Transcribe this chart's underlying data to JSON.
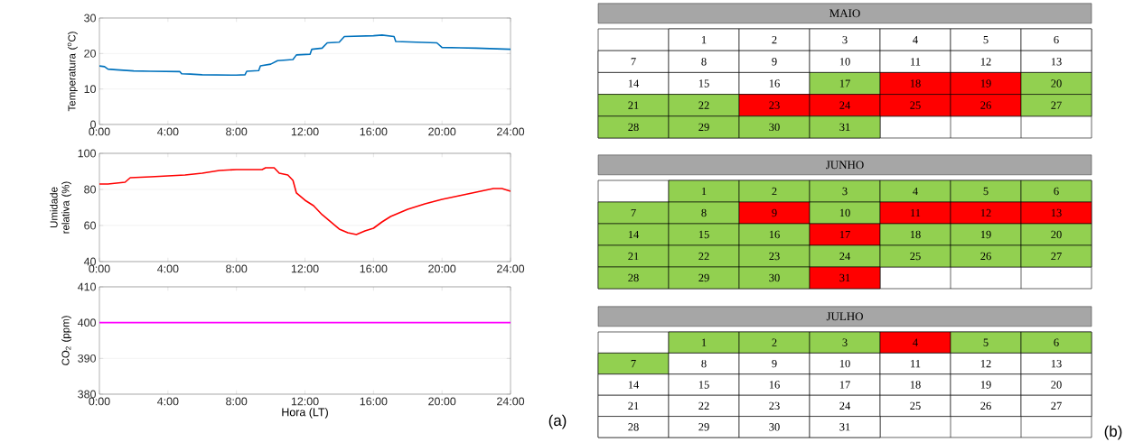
{
  "chart_data": [
    {
      "type": "line",
      "ylabel": "Temperatura ($^{o}$C)",
      "grid": "y",
      "xlim": [
        0,
        24
      ],
      "ylim": [
        0,
        30
      ],
      "yticks": [
        0,
        10,
        20,
        30
      ],
      "xticks": [
        {
          "value": 0,
          "label": "0:00"
        },
        {
          "value": 4,
          "label": "4:00"
        },
        {
          "value": 8,
          "label": "8:00"
        },
        {
          "value": 12,
          "label": "12:00"
        },
        {
          "value": 16,
          "label": "16:00"
        },
        {
          "value": 20,
          "label": "20:00"
        },
        {
          "value": 24,
          "label": "24:00"
        }
      ],
      "x": [
        0,
        0.3,
        0.5,
        1,
        2,
        3,
        4.7,
        4.8,
        5.3,
        6,
        8,
        8.5,
        8.6,
        9.3,
        9.4,
        10,
        10.4,
        11.3,
        11.5,
        12.3,
        12.4,
        13,
        13.3,
        14,
        14.3,
        16,
        16.5,
        17.2,
        17.3,
        19.7,
        20,
        22,
        24
      ],
      "series": [
        {
          "color": "#0072bd",
          "values": [
            16.5,
            16.3,
            15.6,
            15.4,
            15.1,
            15.0,
            14.9,
            14.3,
            14.2,
            14.0,
            13.9,
            14.0,
            15.0,
            15.2,
            16.5,
            17,
            18,
            18.3,
            19.6,
            19.8,
            21.2,
            21.5,
            23,
            23.2,
            24.8,
            25,
            25.2,
            24.8,
            23.4,
            23,
            21.7,
            21.5,
            21.2
          ]
        }
      ]
    },
    {
      "type": "line",
      "ylabel": "Umidade relativa (%)",
      "grid": "y",
      "xlim": [
        0,
        24
      ],
      "ylim": [
        40,
        100
      ],
      "yticks": [
        40,
        60,
        80,
        100
      ],
      "xticks": [
        {
          "value": 0,
          "label": "0:00"
        },
        {
          "value": 4,
          "label": "4:00"
        },
        {
          "value": 8,
          "label": "8:00"
        },
        {
          "value": 12,
          "label": "12:00"
        },
        {
          "value": 16,
          "label": "16:00"
        },
        {
          "value": 20,
          "label": "20:00"
        },
        {
          "value": 24,
          "label": "24:00"
        }
      ],
      "x": [
        0,
        0.5,
        1,
        1.5,
        1.8,
        3,
        4,
        5,
        6,
        7,
        8,
        9.5,
        9.7,
        10.2,
        10.5,
        11,
        11.3,
        11.5,
        12,
        12.5,
        13,
        13.5,
        14,
        14.5,
        15,
        15.5,
        16,
        16.5,
        17,
        18,
        19,
        20,
        21,
        22,
        23,
        23.5,
        24
      ],
      "series": [
        {
          "color": "#ff0000",
          "values": [
            83,
            83,
            83.5,
            84,
            86.5,
            87,
            87.5,
            88,
            89,
            90.5,
            91,
            91,
            92,
            92,
            89,
            88,
            85,
            78,
            74,
            71,
            66,
            62,
            58,
            56,
            55,
            57,
            58.5,
            62,
            65,
            69,
            72,
            74.5,
            76.5,
            78.5,
            80.5,
            80.5,
            79
          ]
        }
      ]
    },
    {
      "type": "line",
      "ylabel": "CO$_{2}$ (ppm)",
      "xlabel": "Hora (LT)",
      "grid": "y",
      "xlim": [
        0,
        24
      ],
      "ylim": [
        380,
        410
      ],
      "yticks": [
        380,
        390,
        400,
        410
      ],
      "xticks": [
        {
          "value": 0,
          "label": "0:00"
        },
        {
          "value": 4,
          "label": "4:00"
        },
        {
          "value": 8,
          "label": "8:00"
        },
        {
          "value": 12,
          "label": "12:00"
        },
        {
          "value": 16,
          "label": "16:00"
        },
        {
          "value": 20,
          "label": "20:00"
        },
        {
          "value": 24,
          "label": "24:00"
        }
      ],
      "x": [
        0,
        24
      ],
      "series": [
        {
          "color": "#ff00ff",
          "values": [
            400,
            400
          ]
        }
      ],
      "annotations": [
        "(a)"
      ]
    },
    {
      "type": "heatmap",
      "title": "MAIO",
      "data_labels": true,
      "categories": [
        null,
        null,
        null,
        null,
        null,
        null,
        null
      ],
      "y_categories": [
        null,
        null,
        null,
        null,
        null
      ],
      "cells": [
        [
          null,
          1,
          2,
          3,
          4,
          5,
          6
        ],
        [
          7,
          8,
          9,
          10,
          11,
          12,
          13
        ],
        [
          14,
          15,
          16,
          17,
          18,
          19,
          20
        ],
        [
          21,
          22,
          23,
          24,
          25,
          26,
          27
        ],
        [
          28,
          29,
          30,
          31,
          null,
          null,
          null
        ]
      ],
      "colors": [
        [
          "#ffffff",
          "#ffffff",
          "#ffffff",
          "#ffffff",
          "#ffffff",
          "#ffffff",
          "#ffffff"
        ],
        [
          "#ffffff",
          "#ffffff",
          "#ffffff",
          "#ffffff",
          "#ffffff",
          "#ffffff",
          "#ffffff"
        ],
        [
          "#ffffff",
          "#ffffff",
          "#ffffff",
          "#92d050",
          "#ff0000",
          "#ff0000",
          "#92d050"
        ],
        [
          "#92d050",
          "#92d050",
          "#ff0000",
          "#ff0000",
          "#ff0000",
          "#ff0000",
          "#92d050"
        ],
        [
          "#92d050",
          "#92d050",
          "#92d050",
          "#92d050",
          "#ffffff",
          "#ffffff",
          "#ffffff"
        ]
      ]
    },
    {
      "type": "heatmap",
      "title": "JUNHO",
      "data_labels": true,
      "categories": [
        null,
        null,
        null,
        null,
        null,
        null,
        null
      ],
      "y_categories": [
        null,
        null,
        null,
        null,
        null
      ],
      "cells": [
        [
          null,
          1,
          2,
          3,
          4,
          5,
          6
        ],
        [
          7,
          8,
          9,
          10,
          11,
          12,
          13
        ],
        [
          14,
          15,
          16,
          17,
          18,
          19,
          20
        ],
        [
          21,
          22,
          23,
          24,
          25,
          26,
          27
        ],
        [
          28,
          29,
          30,
          31,
          null,
          null,
          null
        ]
      ],
      "colors": [
        [
          "#ffffff",
          "#92d050",
          "#92d050",
          "#92d050",
          "#92d050",
          "#92d050",
          "#92d050"
        ],
        [
          "#92d050",
          "#92d050",
          "#ff0000",
          "#92d050",
          "#ff0000",
          "#ff0000",
          "#ff0000"
        ],
        [
          "#92d050",
          "#92d050",
          "#92d050",
          "#ff0000",
          "#92d050",
          "#92d050",
          "#92d050"
        ],
        [
          "#92d050",
          "#92d050",
          "#92d050",
          "#92d050",
          "#92d050",
          "#92d050",
          "#92d050"
        ],
        [
          "#92d050",
          "#92d050",
          "#92d050",
          "#ff0000",
          "#ffffff",
          "#ffffff",
          "#ffffff"
        ]
      ]
    },
    {
      "type": "heatmap",
      "title": "JULHO",
      "data_labels": true,
      "categories": [
        null,
        null,
        null,
        null,
        null,
        null,
        null
      ],
      "y_categories": [
        null,
        null,
        null,
        null,
        null
      ],
      "cells": [
        [
          null,
          1,
          2,
          3,
          4,
          5,
          6
        ],
        [
          7,
          8,
          9,
          10,
          11,
          12,
          13
        ],
        [
          14,
          15,
          16,
          17,
          18,
          19,
          20
        ],
        [
          21,
          22,
          23,
          24,
          25,
          26,
          27
        ],
        [
          28,
          29,
          30,
          31,
          null,
          null,
          null
        ]
      ],
      "colors": [
        [
          "#ffffff",
          "#92d050",
          "#92d050",
          "#92d050",
          "#ff0000",
          "#92d050",
          "#92d050"
        ],
        [
          "#92d050",
          "#ffffff",
          "#ffffff",
          "#ffffff",
          "#ffffff",
          "#ffffff",
          "#ffffff"
        ],
        [
          "#ffffff",
          "#ffffff",
          "#ffffff",
          "#ffffff",
          "#ffffff",
          "#ffffff",
          "#ffffff"
        ],
        [
          "#ffffff",
          "#ffffff",
          "#ffffff",
          "#ffffff",
          "#ffffff",
          "#ffffff",
          "#ffffff"
        ],
        [
          "#ffffff",
          "#ffffff",
          "#ffffff",
          "#ffffff",
          "#ffffff",
          "#ffffff",
          "#ffffff"
        ]
      ],
      "annotations": [
        "(b)"
      ]
    }
  ]
}
